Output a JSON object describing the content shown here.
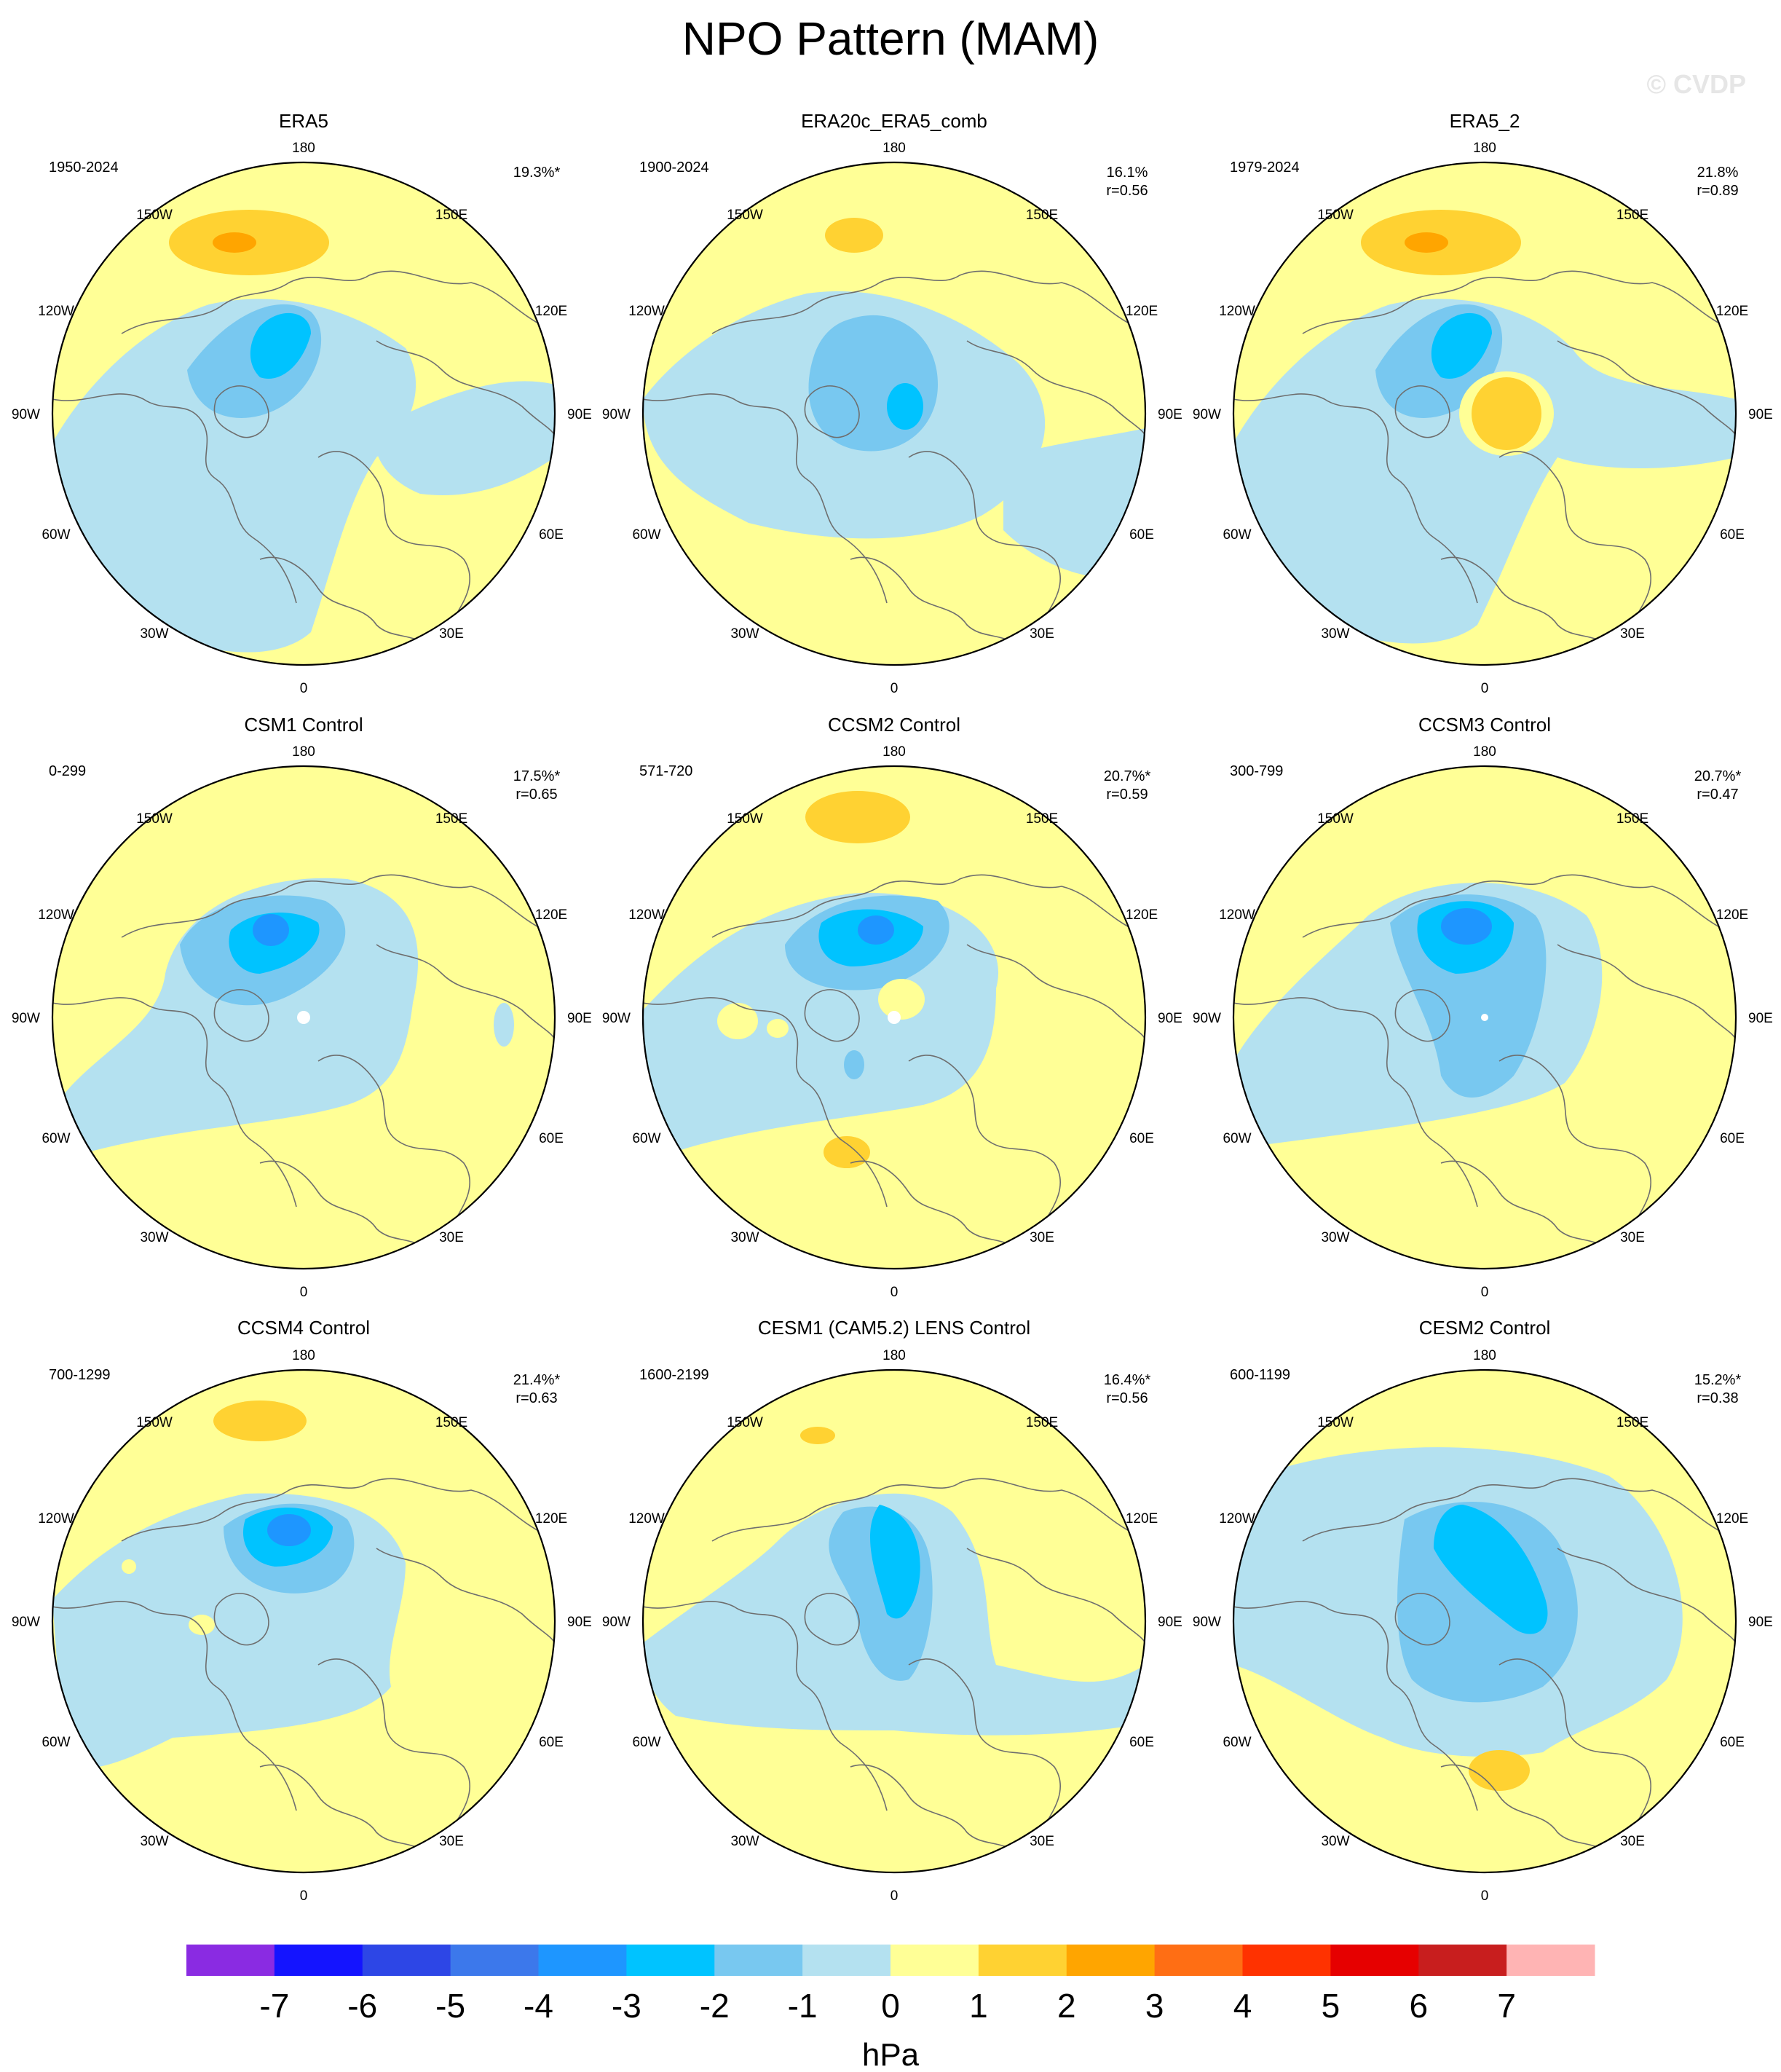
{
  "title": "NPO Pattern (MAM)",
  "watermark": "© CVDP",
  "colorbar": {
    "unit": "hPa",
    "tick_labels": [
      "-7",
      "-6",
      "-5",
      "-4",
      "-3",
      "-2",
      "-1",
      "0",
      "1",
      "2",
      "3",
      "4",
      "5",
      "6",
      "7"
    ],
    "colors": [
      "#8a2be2",
      "#1414ff",
      "#2d46e6",
      "#3c78eb",
      "#1e96ff",
      "#00c3ff",
      "#78c8f0",
      "#b4e1f0",
      "#ffff96",
      "#ffd232",
      "#ffa500",
      "#ff6e14",
      "#ff3200",
      "#e60000",
      "#c81e1e",
      "#ffb4b4"
    ]
  },
  "map_labels": {
    "top": "180",
    "top_left": "150W",
    "top_right": "150E",
    "upper_left": "120W",
    "upper_right": "120E",
    "left": "90W",
    "right": "90E",
    "lower_left": "60W",
    "lower_right": "60E",
    "bottom_left": "30W",
    "bottom_right": "30E",
    "bottom": "0"
  },
  "panels": [
    {
      "title": "ERA5",
      "years": "1950-2024",
      "pct": "19.3%*",
      "corr": ""
    },
    {
      "title": "ERA20c_ERA5_comb",
      "years": "1900-2024",
      "pct": "16.1%",
      "corr": "r=0.56"
    },
    {
      "title": "ERA5_2",
      "years": "1979-2024",
      "pct": "21.8%",
      "corr": "r=0.89"
    },
    {
      "title": "CSM1 Control",
      "years": "0-299",
      "pct": "17.5%*",
      "corr": "r=0.65"
    },
    {
      "title": "CCSM2 Control",
      "years": "571-720",
      "pct": "20.7%*",
      "corr": "r=0.59"
    },
    {
      "title": "CCSM3 Control",
      "years": "300-799",
      "pct": "20.7%*",
      "corr": "r=0.47"
    },
    {
      "title": "CCSM4 Control",
      "years": "700-1299",
      "pct": "21.4%*",
      "corr": "r=0.63"
    },
    {
      "title": "CESM1 (CAM5.2) LENS Control",
      "years": "1600-2199",
      "pct": "16.4%*",
      "corr": "r=0.56"
    },
    {
      "title": "CESM2 Control",
      "years": "600-1199",
      "pct": "15.2%*",
      "corr": "r=0.38"
    }
  ]
}
